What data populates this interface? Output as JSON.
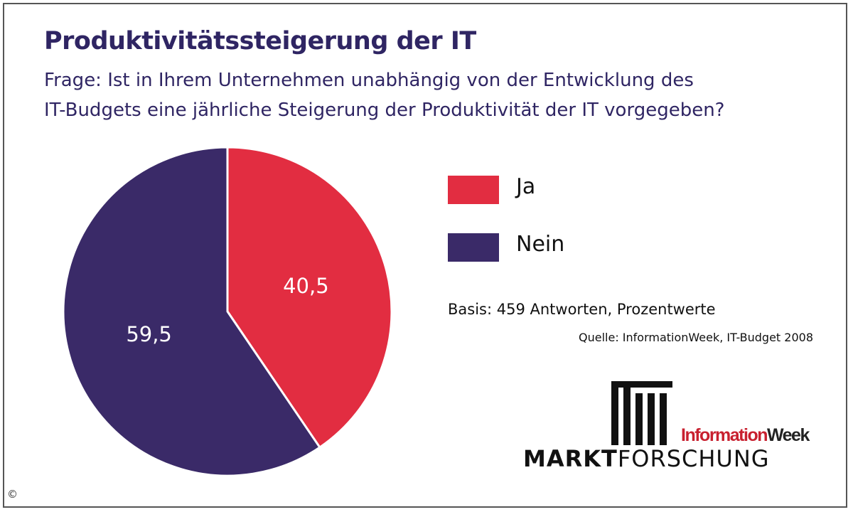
{
  "chart_data": {
    "type": "pie",
    "title": "Produktivitätssteigerung der IT",
    "subtitle_lines": [
      "Frage: Ist in Ihrem Unternehmen unabhängig von der Entwicklung des",
      "IT-Budgets eine jährliche Steigerung der Produktivität der IT vorgegeben?"
    ],
    "slices": [
      {
        "label": "Ja",
        "value": 40.5,
        "value_label": "40,5",
        "color": "#e22d41"
      },
      {
        "label": "Nein",
        "value": 59.5,
        "value_label": "59,5",
        "color": "#3a2a68"
      }
    ],
    "legend_position": "right"
  },
  "notes": {
    "basis": "Basis: 459 Antworten, Prozentwerte",
    "source": "Quelle: InformationWeek, IT-Budget 2008"
  },
  "logo": {
    "information": "Information",
    "week": "Week",
    "markt": "MARKT",
    "forschung": "FORSCHUNG"
  },
  "copyright": "©"
}
